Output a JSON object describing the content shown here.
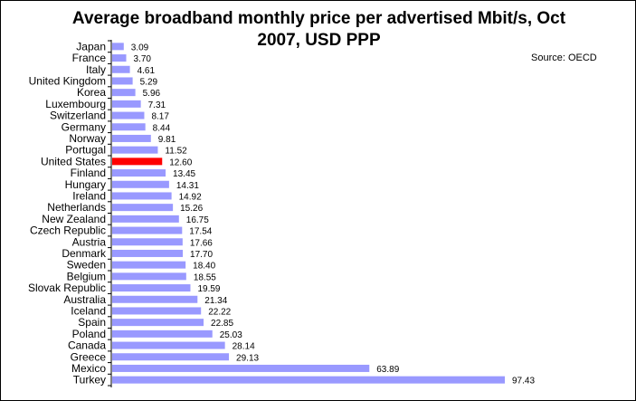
{
  "chart_data": {
    "type": "bar",
    "orientation": "horizontal",
    "title_lines": [
      "Average broadband monthly price per advertised Mbit/s, Oct",
      "2007, USD PPP"
    ],
    "source": "Source: OECD",
    "categories": [
      "Japan",
      "France",
      "Italy",
      "United Kingdom",
      "Korea",
      "Luxembourg",
      "Switzerland",
      "Germany",
      "Norway",
      "Portugal",
      "United States",
      "Finland",
      "Hungary",
      "Ireland",
      "Netherlands",
      "New Zealand",
      "Czech Republic",
      "Austria",
      "Denmark",
      "Sweden",
      "Belgium",
      "Slovak Republic",
      "Australia",
      "Iceland",
      "Spain",
      "Poland",
      "Canada",
      "Greece",
      "Mexico",
      "Turkey"
    ],
    "values": [
      3.09,
      3.7,
      4.61,
      5.29,
      5.96,
      7.31,
      8.17,
      8.44,
      9.81,
      11.52,
      12.6,
      13.45,
      14.31,
      14.92,
      15.26,
      16.75,
      17.54,
      17.66,
      17.7,
      18.4,
      18.55,
      19.59,
      21.34,
      22.22,
      22.85,
      25.03,
      28.14,
      29.13,
      63.89,
      97.43
    ],
    "value_labels": [
      "3.09",
      "3.70",
      "4.61",
      "5.29",
      "5.96",
      "7.31",
      "8.17",
      "8.44",
      "9.81",
      "11.52",
      "12.60",
      "13.45",
      "14.31",
      "14.92",
      "15.26",
      "16.75",
      "17.54",
      "17.66",
      "17.70",
      "18.40",
      "18.55",
      "19.59",
      "21.34",
      "22.22",
      "22.85",
      "25.03",
      "28.14",
      "29.13",
      "63.89",
      "97.43"
    ],
    "highlight_category": "United States",
    "bar_color": "#9999ff",
    "highlight_color": "#ff0000",
    "xlim": [
      0,
      100
    ],
    "grid": false,
    "xaxis_visible": false
  }
}
